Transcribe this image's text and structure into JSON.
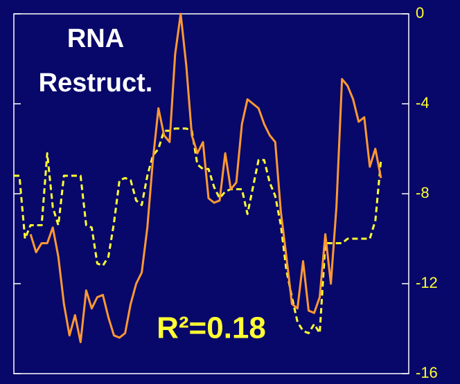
{
  "chart_data": {
    "type": "line",
    "annotations": [
      "RNA",
      "Restruct.",
      "R²=0.18"
    ],
    "ylim": [
      -16,
      0
    ],
    "yticks": [
      0,
      -4,
      -8,
      -12,
      -16
    ],
    "series": [
      {
        "color": "#ff9933",
        "linestyle": "solid",
        "values": [
          null,
          null,
          null,
          -9.8,
          -10.6,
          -10.2,
          -10.2,
          -9.5,
          -10.8,
          -12.9,
          -14.3,
          -13.4,
          -14.6,
          -12.3,
          -13.1,
          -12.6,
          -12.5,
          -13.5,
          -14.3,
          -14.4,
          -14.2,
          -12.9,
          -12.0,
          -11.5,
          -9.5,
          -6.5,
          -4.2,
          -5.4,
          -5.7,
          -1.8,
          0,
          -2.3,
          -5.4,
          -6.2,
          -5.7,
          -8.2,
          -8.4,
          -8.3,
          -6.2,
          -7.8,
          -7.5,
          -4.9,
          -3.8,
          -4.0,
          -4.2,
          -4.9,
          -5.4,
          -5.7,
          -8.8,
          -10.8,
          -12.9,
          -13.1,
          -11.0,
          -13.2,
          -13.3,
          -12.6,
          -9.8,
          -12.0,
          -8.6,
          -2.9,
          -3.2,
          -3.8,
          -4.8,
          -4.6,
          -6.8,
          -6.0,
          -7.3,
          null,
          null,
          null,
          null,
          null
        ]
      },
      {
        "color": "#ffff33",
        "linestyle": "dashed",
        "values": [
          -7.2,
          -7.2,
          -10.0,
          -9.4,
          -9.4,
          -9.4,
          -6.2,
          -8.6,
          -9.4,
          -7.2,
          -7.2,
          -7.2,
          -7.2,
          -9.4,
          -9.5,
          -11.1,
          -11.2,
          -10.8,
          -9.3,
          -7.4,
          -7.3,
          -7.4,
          -8.3,
          -8.5,
          -7.2,
          -6.3,
          -6.0,
          -5.2,
          -5.2,
          -5.1,
          -5.1,
          -5.1,
          -5.2,
          -6.7,
          -6.9,
          -6.9,
          -7.7,
          -8.2,
          -7.9,
          -7.8,
          -7.8,
          -7.8,
          -8.9,
          -7.7,
          -6.5,
          -6.5,
          -7.5,
          -8.1,
          -9.4,
          -11.4,
          -12.6,
          -13.7,
          -14.1,
          -14.2,
          -13.8,
          -14.2,
          -10.2,
          -10.2,
          -10.2,
          -10.2,
          -10.0,
          -10.0,
          -10.0,
          -10.0,
          -10.0,
          -9.2,
          -6.5,
          null,
          null,
          null,
          null,
          null
        ]
      }
    ]
  }
}
